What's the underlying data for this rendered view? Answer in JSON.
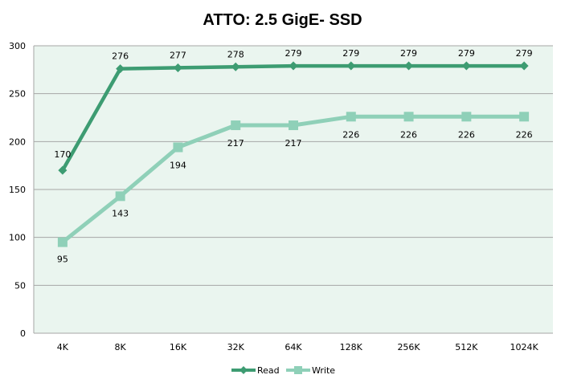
{
  "chart_data": {
    "type": "line",
    "title": "ATTO: 2.5 GigE- SSD",
    "categories": [
      "4K",
      "8K",
      "16K",
      "32K",
      "64K",
      "128K",
      "256K",
      "512K",
      "1024K"
    ],
    "ylim": [
      0,
      300
    ],
    "yticks": [
      0,
      50,
      100,
      150,
      200,
      250,
      300
    ],
    "grid": true,
    "legend_position": "bottom",
    "series": [
      {
        "name": "Read",
        "values": [
          170,
          276,
          277,
          278,
          279,
          279,
          279,
          279,
          279
        ],
        "color": "#3d9c72",
        "marker": "diamond"
      },
      {
        "name": "Write",
        "values": [
          95,
          143,
          194,
          217,
          217,
          226,
          226,
          226,
          226
        ],
        "color": "#8fd0b8",
        "marker": "square"
      }
    ],
    "plot_background": "#eaf5ef"
  }
}
